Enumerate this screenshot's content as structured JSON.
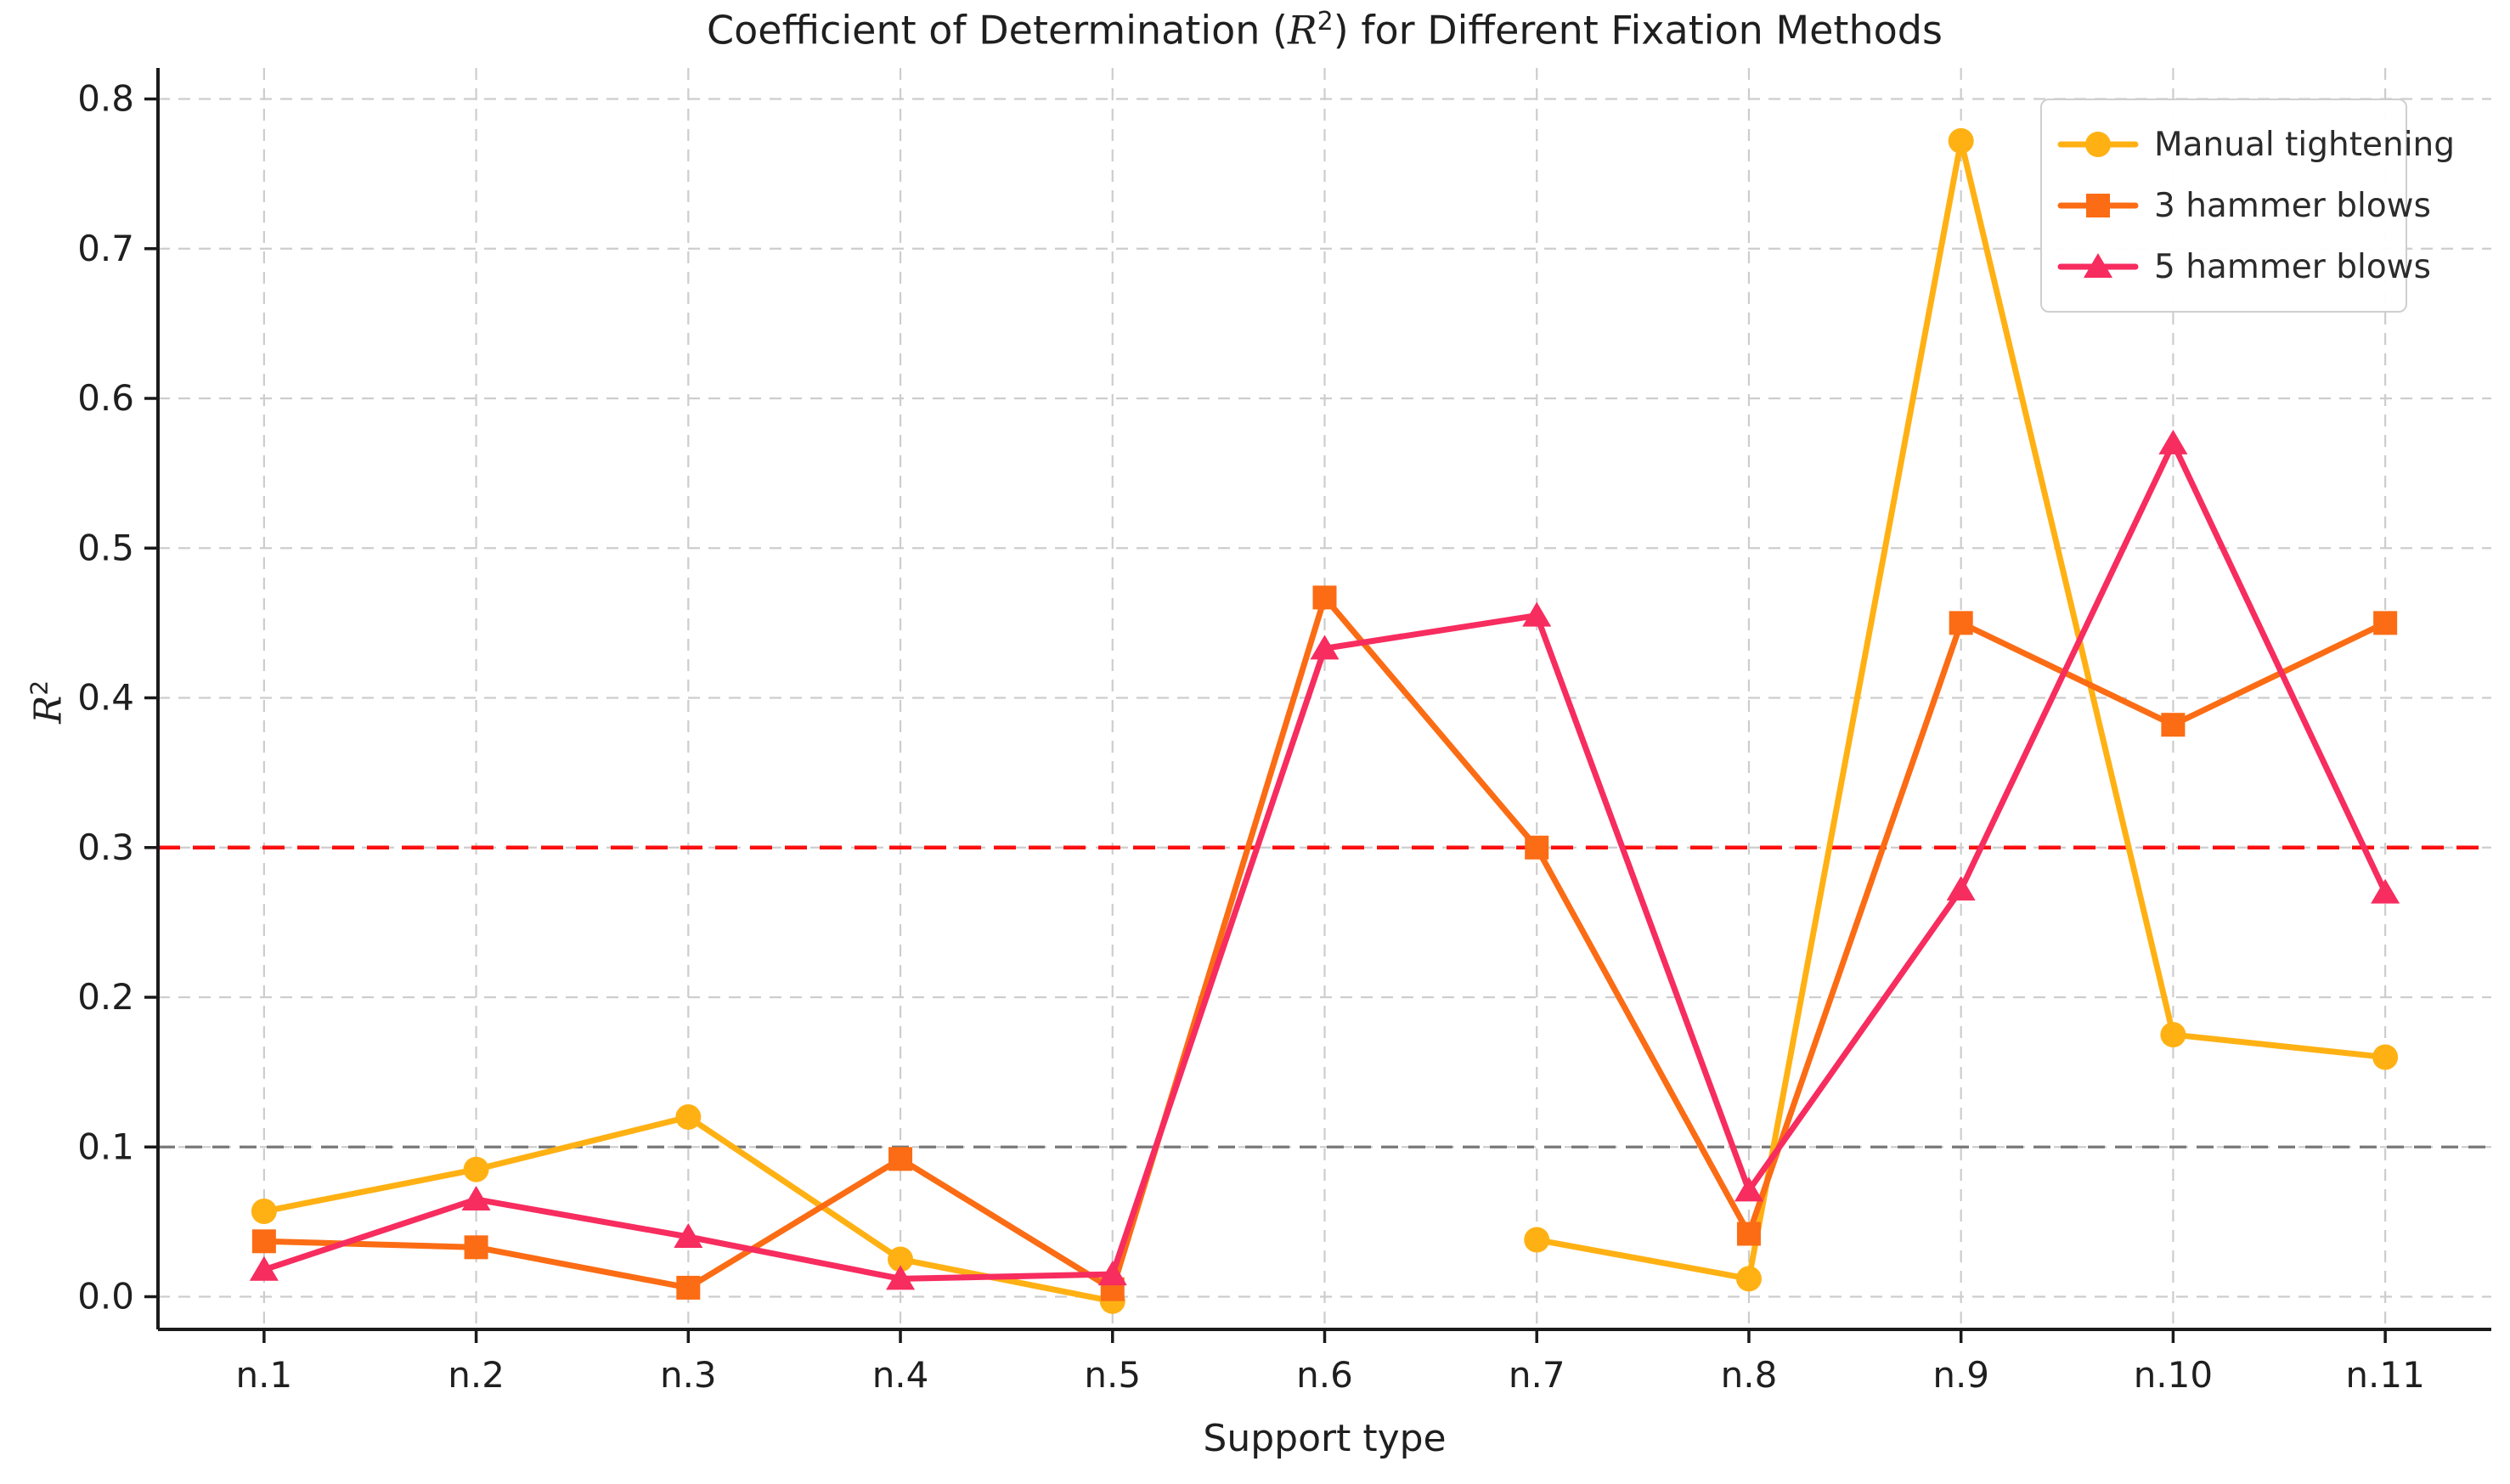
{
  "title": {
    "pre": "Coefficient of Determination (",
    "math_base": "R",
    "math_sup": "2",
    "post": ") for Different Fixation Methods"
  },
  "axes": {
    "xlabel": "Support type",
    "ylabel_base": "R",
    "ylabel_sup": "2",
    "x_tick_labels": [
      "n.1",
      "n.2",
      "n.3",
      "n.4",
      "n.5",
      "n.6",
      "n.7",
      "n.8",
      "n.9",
      "n.10",
      "n.11"
    ],
    "y_tick_labels": [
      "0.0",
      "0.1",
      "0.2",
      "0.3",
      "0.4",
      "0.5",
      "0.6",
      "0.7",
      "0.8"
    ]
  },
  "colors": {
    "manual": "#ffb114",
    "hammer3": "#fb6c14",
    "hammer5": "#f72c5f",
    "refline_red": "#fa0f0f",
    "refline_gray": "#787878",
    "gridline": "#cdcdcd",
    "spine": "#1a1a1a",
    "text": "#1f1f1f"
  },
  "legend": {
    "entries": [
      {
        "label": "Manual tightening",
        "series": "manual",
        "marker": "circle"
      },
      {
        "label": "3 hammer blows",
        "series": "hammer3",
        "marker": "square"
      },
      {
        "label": "5 hammer blows",
        "series": "hammer5",
        "marker": "triangle"
      }
    ],
    "position": "upper right"
  },
  "chart_data": {
    "type": "line",
    "categories": [
      "n.1",
      "n.2",
      "n.3",
      "n.4",
      "n.5",
      "n.6",
      "n.7",
      "n.8",
      "n.9",
      "n.10",
      "n.11"
    ],
    "series": [
      {
        "name": "Manual tightening",
        "key": "manual",
        "marker": "circle",
        "values": [
          0.057,
          0.085,
          0.12,
          0.025,
          -0.003,
          null,
          0.038,
          0.012,
          0.772,
          0.175,
          0.16
        ]
      },
      {
        "name": "3 hammer blows",
        "key": "hammer3",
        "marker": "square",
        "values": [
          0.037,
          0.033,
          0.006,
          0.092,
          0.005,
          0.467,
          0.3,
          0.042,
          0.45,
          0.382,
          0.45
        ]
      },
      {
        "name": "5 hammer blows",
        "key": "hammer5",
        "marker": "triangle",
        "values": [
          0.018,
          0.065,
          0.04,
          0.012,
          0.015,
          0.433,
          0.455,
          0.071,
          0.272,
          0.57,
          0.27
        ]
      }
    ],
    "reference_lines": [
      {
        "y": 0.3,
        "style": "dashed",
        "color_key": "refline_red"
      },
      {
        "y": 0.1,
        "style": "dashed",
        "color_key": "refline_gray"
      }
    ],
    "title": "Coefficient of Determination (R^2) for Different Fixation Methods",
    "xlabel": "Support type",
    "ylabel": "R^2",
    "ylim": [
      -0.022,
      0.821
    ],
    "yticks": [
      0.0,
      0.1,
      0.2,
      0.3,
      0.4,
      0.5,
      0.6,
      0.7,
      0.8
    ],
    "grid": true,
    "legend_position": "upper right"
  }
}
